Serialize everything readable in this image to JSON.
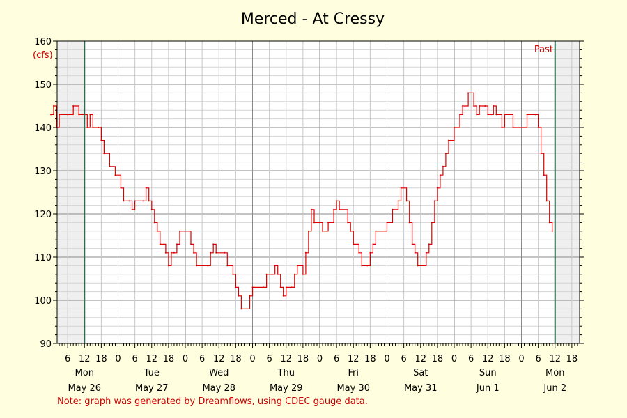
{
  "chart_data": {
    "type": "line",
    "title": "Merced - At Cressy",
    "unit": "(cfs)",
    "ylim": [
      90,
      160
    ],
    "y_ticks": [
      90,
      100,
      110,
      120,
      130,
      140,
      150,
      160
    ],
    "x_hours": [
      "6",
      "12",
      "18",
      "0"
    ],
    "days": [
      {
        "dow": "Mon",
        "date": "May 26"
      },
      {
        "dow": "Tue",
        "date": "May 27"
      },
      {
        "dow": "Wed",
        "date": "May 28"
      },
      {
        "dow": "Thu",
        "date": "May 29"
      },
      {
        "dow": "Fri",
        "date": "May 30"
      },
      {
        "dow": "Sat",
        "date": "May 31"
      },
      {
        "dow": "Sun",
        "date": "Jun 1"
      },
      {
        "dow": "Mon",
        "date": "Jun 2"
      }
    ],
    "past_label": "Past",
    "grid": true,
    "series": [
      {
        "color": "#dd0000",
        "points": [
          [
            "May 26 00:00",
            143
          ],
          [
            "May 26 01:00",
            145
          ],
          [
            "May 26 02:00",
            140
          ],
          [
            "May 26 03:00",
            143
          ],
          [
            "May 26 06:00",
            143
          ],
          [
            "May 26 08:00",
            145
          ],
          [
            "May 26 10:00",
            143
          ],
          [
            "May 26 12:00",
            143
          ],
          [
            "May 26 13:00",
            140
          ],
          [
            "May 26 14:00",
            143
          ],
          [
            "May 26 15:00",
            140
          ],
          [
            "May 26 17:00",
            140
          ],
          [
            "May 26 18:00",
            137
          ],
          [
            "May 26 19:00",
            134
          ],
          [
            "May 26 21:00",
            131
          ],
          [
            "May 26 23:00",
            129
          ],
          [
            "May 27 01:00",
            126
          ],
          [
            "May 27 02:00",
            123
          ],
          [
            "May 27 04:00",
            123
          ],
          [
            "May 27 05:00",
            121
          ],
          [
            "May 27 06:00",
            123
          ],
          [
            "May 27 09:00",
            123
          ],
          [
            "May 27 10:00",
            126
          ],
          [
            "May 27 11:00",
            123
          ],
          [
            "May 27 12:00",
            121
          ],
          [
            "May 27 13:00",
            118
          ],
          [
            "May 27 14:00",
            116
          ],
          [
            "May 27 15:00",
            113
          ],
          [
            "May 27 17:00",
            111
          ],
          [
            "May 27 18:00",
            108
          ],
          [
            "May 27 19:00",
            111
          ],
          [
            "May 27 20:00",
            111
          ],
          [
            "May 27 21:00",
            113
          ],
          [
            "May 27 22:00",
            116
          ],
          [
            "May 28 02:00",
            113
          ],
          [
            "May 28 03:00",
            111
          ],
          [
            "May 28 04:00",
            108
          ],
          [
            "May 28 08:00",
            108
          ],
          [
            "May 28 09:00",
            111
          ],
          [
            "May 28 10:00",
            113
          ],
          [
            "May 28 11:00",
            111
          ],
          [
            "May 28 14:00",
            111
          ],
          [
            "May 28 15:00",
            108
          ],
          [
            "May 28 17:00",
            106
          ],
          [
            "May 28 18:00",
            103
          ],
          [
            "May 28 19:00",
            101
          ],
          [
            "May 28 20:00",
            98
          ],
          [
            "May 28 22:00",
            98
          ],
          [
            "May 28 23:00",
            101
          ],
          [
            "May 29 00:00",
            103
          ],
          [
            "May 29 04:00",
            103
          ],
          [
            "May 29 05:00",
            106
          ],
          [
            "May 29 07:00",
            106
          ],
          [
            "May 29 08:00",
            108
          ],
          [
            "May 29 09:00",
            106
          ],
          [
            "May 29 10:00",
            103
          ],
          [
            "May 29 11:00",
            101
          ],
          [
            "May 29 12:00",
            103
          ],
          [
            "May 29 14:00",
            103
          ],
          [
            "May 29 15:00",
            106
          ],
          [
            "May 29 16:00",
            108
          ],
          [
            "May 29 18:00",
            106
          ],
          [
            "May 29 19:00",
            111
          ],
          [
            "May 29 20:00",
            116
          ],
          [
            "May 29 21:00",
            121
          ],
          [
            "May 29 22:00",
            118
          ],
          [
            "May 30 00:00",
            118
          ],
          [
            "May 30 01:00",
            116
          ],
          [
            "May 30 03:00",
            118
          ],
          [
            "May 30 05:00",
            121
          ],
          [
            "May 30 06:00",
            123
          ],
          [
            "May 30 07:00",
            121
          ],
          [
            "May 30 10:00",
            118
          ],
          [
            "May 30 11:00",
            116
          ],
          [
            "May 30 12:00",
            113
          ],
          [
            "May 30 14:00",
            111
          ],
          [
            "May 30 15:00",
            108
          ],
          [
            "May 30 17:00",
            108
          ],
          [
            "May 30 18:00",
            111
          ],
          [
            "May 30 19:00",
            113
          ],
          [
            "May 30 20:00",
            116
          ],
          [
            "May 31 00:00",
            118
          ],
          [
            "May 31 02:00",
            121
          ],
          [
            "May 31 04:00",
            123
          ],
          [
            "May 31 05:00",
            126
          ],
          [
            "May 31 07:00",
            123
          ],
          [
            "May 31 08:00",
            118
          ],
          [
            "May 31 09:00",
            113
          ],
          [
            "May 31 10:00",
            111
          ],
          [
            "May 31 11:00",
            108
          ],
          [
            "May 31 14:00",
            111
          ],
          [
            "May 31 15:00",
            113
          ],
          [
            "May 31 16:00",
            118
          ],
          [
            "May 31 17:00",
            123
          ],
          [
            "May 31 18:00",
            126
          ],
          [
            "May 31 19:00",
            129
          ],
          [
            "May 31 20:00",
            131
          ],
          [
            "May 31 21:00",
            134
          ],
          [
            "May 31 22:00",
            137
          ],
          [
            "Jun 1 00:00",
            140
          ],
          [
            "Jun 1 02:00",
            143
          ],
          [
            "Jun 1 03:00",
            145
          ],
          [
            "Jun 1 05:00",
            148
          ],
          [
            "Jun 1 07:00",
            145
          ],
          [
            "Jun 1 08:00",
            143
          ],
          [
            "Jun 1 09:00",
            145
          ],
          [
            "Jun 1 11:00",
            145
          ],
          [
            "Jun 1 12:00",
            143
          ],
          [
            "Jun 1 14:00",
            145
          ],
          [
            "Jun 1 15:00",
            143
          ],
          [
            "Jun 1 17:00",
            140
          ],
          [
            "Jun 1 18:00",
            143
          ],
          [
            "Jun 1 21:00",
            140
          ],
          [
            "Jun 2 02:00",
            143
          ],
          [
            "Jun 2 05:00",
            143
          ],
          [
            "Jun 2 06:00",
            140
          ],
          [
            "Jun 2 07:00",
            134
          ],
          [
            "Jun 2 08:00",
            129
          ],
          [
            "Jun 2 09:00",
            123
          ],
          [
            "Jun 2 10:00",
            118
          ],
          [
            "Jun 2 11:00",
            116
          ]
        ]
      }
    ]
  },
  "note": "Note: graph was generated by Dreamflows, using CDEC gauge data."
}
